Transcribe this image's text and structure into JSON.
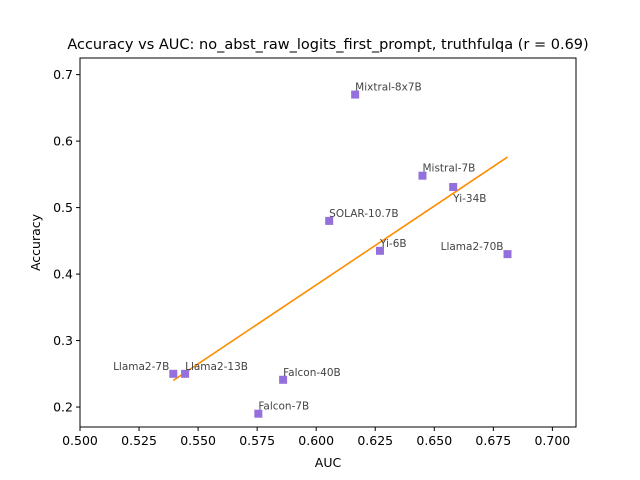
{
  "chart_data": {
    "type": "scatter",
    "title": "Accuracy vs AUC: no_abst_raw_logits_first_prompt, truthfulqa (r = 0.69)",
    "xlabel": "AUC",
    "ylabel": "Accuracy",
    "xlim": [
      0.5,
      0.71
    ],
    "ylim": [
      0.17,
      0.725
    ],
    "xticks": [
      "0.500",
      "0.525",
      "0.550",
      "0.575",
      "0.600",
      "0.625",
      "0.650",
      "0.675",
      "0.700"
    ],
    "yticks": [
      "0.2",
      "0.3",
      "0.4",
      "0.5",
      "0.6",
      "0.7"
    ],
    "grid": false,
    "marker_color": "#9370DB",
    "fit_color": "#FF8C00",
    "points": [
      {
        "label": "Mixtral-8x7B",
        "x": 0.6165,
        "y": 0.67
      },
      {
        "label": "Mistral-7B",
        "x": 0.645,
        "y": 0.548
      },
      {
        "label": "Yi-34B",
        "x": 0.658,
        "y": 0.531
      },
      {
        "label": "SOLAR-10.7B",
        "x": 0.6055,
        "y": 0.48
      },
      {
        "label": "Yi-6B",
        "x": 0.627,
        "y": 0.435
      },
      {
        "label": "Llama2-70B",
        "x": 0.681,
        "y": 0.43
      },
      {
        "label": "Llama2-7B",
        "x": 0.5395,
        "y": 0.25
      },
      {
        "label": "Llama2-13B",
        "x": 0.5445,
        "y": 0.25
      },
      {
        "label": "Falcon-40B",
        "x": 0.586,
        "y": 0.241
      },
      {
        "label": "Falcon-7B",
        "x": 0.5755,
        "y": 0.19
      }
    ],
    "fit_line": {
      "x": [
        0.5395,
        0.681
      ],
      "y": [
        0.24,
        0.576
      ]
    }
  }
}
